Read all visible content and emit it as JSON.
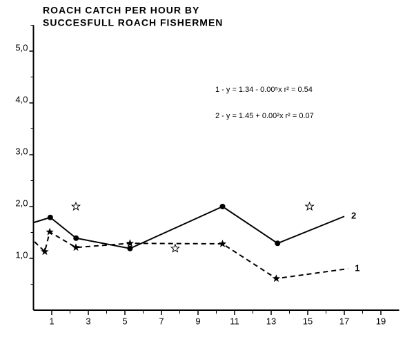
{
  "chart_data": {
    "type": "line",
    "title": [
      "ROACH CATCH PER HOUR BY",
      "SUCCESFULL ROACH FISHERMEN"
    ],
    "annotations": [
      "1 -  y = 1.34 - 0.00⁵x    r² = 0.54",
      "2 -  y = 1.45 + 0.00²x    r² = 0.07"
    ],
    "xlim": [
      0,
      20
    ],
    "xticks": [
      1,
      3,
      5,
      7,
      9,
      11,
      13,
      15,
      17,
      19
    ],
    "ylim": [
      0,
      5.5
    ],
    "yticks": [
      {
        "value": 1,
        "label": "1,0"
      },
      {
        "value": 2,
        "label": "2,0"
      },
      {
        "value": 3,
        "label": "3,0"
      },
      {
        "value": 4,
        "label": "4,0"
      },
      {
        "value": 5,
        "label": "5,0"
      }
    ],
    "series": [
      {
        "name": "2",
        "color": "#000000",
        "dash": false,
        "marker": "circle",
        "x": [
          0,
          0.92,
          2.33,
          5.28,
          10.34,
          13.35,
          17.0
        ],
        "values": [
          1.69,
          1.79,
          1.39,
          1.19,
          2.0,
          1.29,
          1.81
        ]
      },
      {
        "name": "1",
        "color": "#000000",
        "dash": true,
        "marker": "star",
        "x": [
          0.06,
          0.62,
          0.89,
          2.32,
          5.28,
          10.34,
          13.28,
          17.2
        ],
        "values": [
          1.32,
          1.13,
          1.51,
          1.21,
          1.29,
          1.28,
          0.61,
          0.8
        ]
      }
    ],
    "scatter": {
      "marker": "hollow-star",
      "x": [
        2.32,
        7.75,
        15.1
      ],
      "values": [
        2.0,
        1.19,
        2.0
      ]
    }
  }
}
